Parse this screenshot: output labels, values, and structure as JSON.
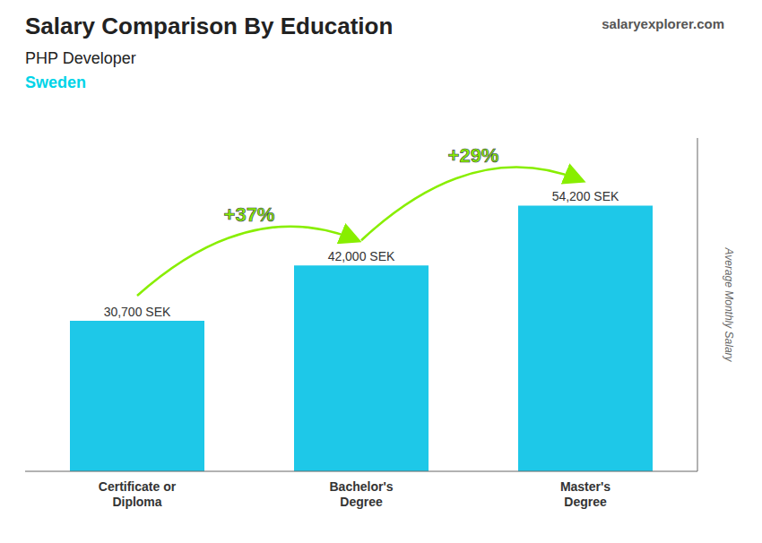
{
  "chart_data": {
    "type": "bar",
    "title": "Salary Comparison By Education",
    "subtitle": "PHP Developer",
    "ylabel": "Average Monthly Salary",
    "categories": [
      "Certificate or\nDiploma",
      "Bachelor's\nDegree",
      "Master's\nDegree"
    ],
    "values": [
      30700,
      42000,
      54200
    ],
    "value_labels": [
      "30,700 SEK",
      "42,000 SEK",
      "54,200 SEK"
    ],
    "data_labels": true,
    "color": "#1ec8e8",
    "ylim": [
      0,
      68000
    ],
    "tick_labels": "x",
    "grid": false,
    "annotations": [
      {
        "text": "Sweden",
        "color": "#00d4e8"
      },
      {
        "text": "salaryexplorer.com"
      },
      {
        "text": "+37%",
        "color": "#88ee00",
        "between": [
          0,
          1
        ]
      },
      {
        "text": "+29%",
        "color": "#88ee00",
        "between": [
          1,
          2
        ]
      }
    ]
  }
}
